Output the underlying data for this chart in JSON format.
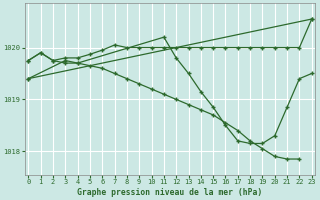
{
  "title": "Graphe pression niveau de la mer (hPa)",
  "bg_color": "#cce8e4",
  "grid_color": "#ffffff",
  "line_color": "#2d6a2d",
  "xlim": [
    -0.3,
    23.3
  ],
  "ylim": [
    1017.55,
    1020.85
  ],
  "yticks": [
    1018,
    1019,
    1020
  ],
  "xticks": [
    0,
    1,
    2,
    3,
    4,
    5,
    6,
    7,
    8,
    9,
    10,
    11,
    12,
    13,
    14,
    15,
    16,
    17,
    18,
    19,
    20,
    21,
    22,
    23
  ],
  "series1_x": [
    0,
    1,
    2,
    3,
    4,
    5,
    6,
    7,
    8,
    9,
    10,
    11,
    12,
    13,
    14,
    15,
    16,
    17,
    18,
    19,
    20,
    21,
    22,
    23
  ],
  "series1_y": [
    1019.75,
    1019.9,
    1019.75,
    1019.8,
    1019.8,
    1019.87,
    1019.95,
    1020.05,
    1020.0,
    1020.0,
    1020.0,
    1020.0,
    1020.0,
    1020.0,
    1020.0,
    1020.0,
    1020.0,
    1020.0,
    1020.0,
    1020.0,
    1020.0,
    1020.0,
    1020.0,
    1020.55
  ],
  "series2_x": [
    0,
    1,
    2,
    3,
    4,
    5,
    6,
    7,
    8,
    9,
    10,
    11,
    12,
    13,
    14,
    15,
    16,
    17,
    18,
    19,
    20,
    21,
    22,
    23
  ],
  "series2_y": [
    1019.75,
    1019.9,
    1019.75,
    1019.7,
    1019.7,
    1019.65,
    1019.6,
    1019.5,
    1019.4,
    1019.3,
    1019.2,
    1019.1,
    1019.0,
    1018.9,
    1018.8,
    1018.7,
    1018.55,
    1018.4,
    1018.2,
    1018.05,
    1017.9,
    1017.85,
    1017.85,
    null
  ],
  "series3_x": [
    0,
    3,
    4,
    11,
    12,
    13,
    14,
    15,
    16,
    17,
    18,
    19,
    20,
    21,
    22,
    23
  ],
  "series3_y": [
    1019.4,
    1019.75,
    1019.7,
    1020.2,
    1019.8,
    1019.5,
    1019.15,
    1018.85,
    1018.5,
    1018.2,
    1018.15,
    1018.15,
    1018.3,
    1018.85,
    1019.4,
    1019.5
  ],
  "series4_x": [
    0,
    23
  ],
  "series4_y": [
    1019.4,
    1020.55
  ]
}
